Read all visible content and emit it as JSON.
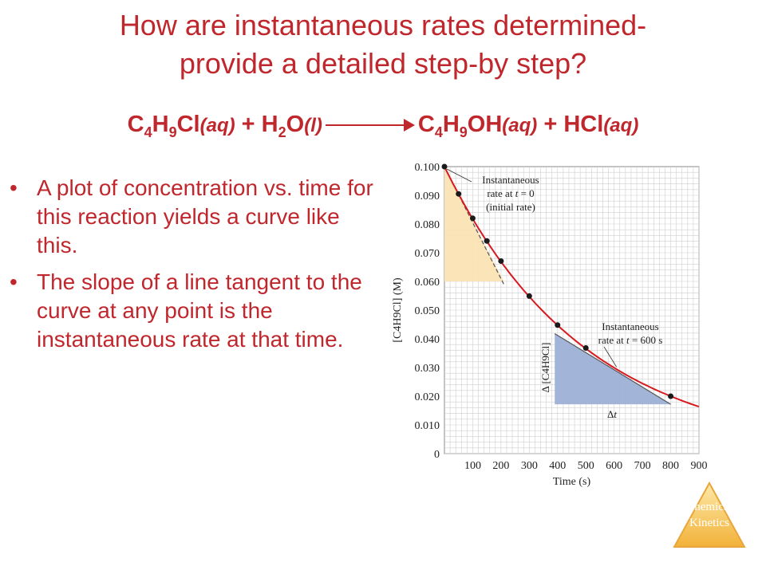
{
  "slide": {
    "title_line1": "How are instantaneous rates determined-",
    "title_line2": "provide a detailed step-by step?",
    "equation": {
      "r1_base1": "C",
      "r1_sub1": "4",
      "r1_base2": "H",
      "r1_sub2": "9",
      "r1_base3": "Cl",
      "r1_state": "(aq)",
      "plus1": " + ",
      "r2_base1": "H",
      "r2_sub1": "2",
      "r2_base2": "O",
      "r2_state": "(l)",
      "p1_base1": "C",
      "p1_sub1": "4",
      "p1_base2": "H",
      "p1_sub2": "9",
      "p1_base3": "OH",
      "p1_state": "(aq)",
      "plus2": " + ",
      "p2_base": "HCl",
      "p2_state": "(aq)"
    },
    "bullets": [
      "A plot of concentration vs. time for this reaction yields a curve like this.",
      "The slope of a line tangent to the curve at any point is the instantaneous rate at that time."
    ],
    "bullet_char": "•",
    "badge": {
      "line1": "Chemical",
      "line2": "Kinetics"
    }
  },
  "chart_data": {
    "type": "line",
    "xlabel": "Time (s)",
    "ylabel": "[C4H9Cl] (M)",
    "xlim": [
      0,
      900
    ],
    "ylim": [
      0,
      0.1
    ],
    "x_ticks": [
      "100",
      "200",
      "300",
      "400",
      "500",
      "600",
      "700",
      "800",
      "900"
    ],
    "y_ticks": [
      "0",
      "0.010",
      "0.020",
      "0.030",
      "0.040",
      "0.050",
      "0.060",
      "0.070",
      "0.080",
      "0.090",
      "0.100"
    ],
    "grid": true,
    "series": [
      {
        "x": [
          0,
          50,
          100,
          150,
          200,
          300,
          400,
          500,
          800
        ],
        "y": [
          0.1,
          0.0905,
          0.082,
          0.0741,
          0.0671,
          0.0549,
          0.0448,
          0.0368,
          0.02
        ]
      }
    ],
    "tangent_initial": {
      "x": [
        0,
        210
      ],
      "y": [
        0.1,
        0.059
      ]
    },
    "tangent_600": {
      "x": [
        390,
        800
      ],
      "y": [
        0.0418,
        0.0172
      ]
    },
    "shaded_initial": {
      "x": [
        0,
        210
      ],
      "y": [
        0.06,
        0.1
      ]
    },
    "shaded_600": {
      "x": [
        390,
        800
      ],
      "y": [
        0.0172,
        0.0418
      ]
    },
    "annotations": {
      "initial_line1": "Instantaneous",
      "initial_line2_prefix": "rate at ",
      "initial_line2_var": "t",
      "initial_line2_suffix": " = 0",
      "initial_line3": "(initial rate)",
      "later_line1": "Instantaneous",
      "later_line2_prefix": "rate at ",
      "later_line2_var": "t",
      "later_line2_suffix": " = 600 s",
      "delta_conc": "Δ [C4H9Cl]",
      "delta_t_symbol": "Δ",
      "delta_t_var": "t"
    },
    "colors": {
      "curve": "#d71920",
      "points": "#1a1a1a",
      "shade_initial": "#fbe3b4",
      "shade_600": "#9db1d6",
      "grid": "#cfcfcf",
      "tangent": "#555555"
    }
  }
}
